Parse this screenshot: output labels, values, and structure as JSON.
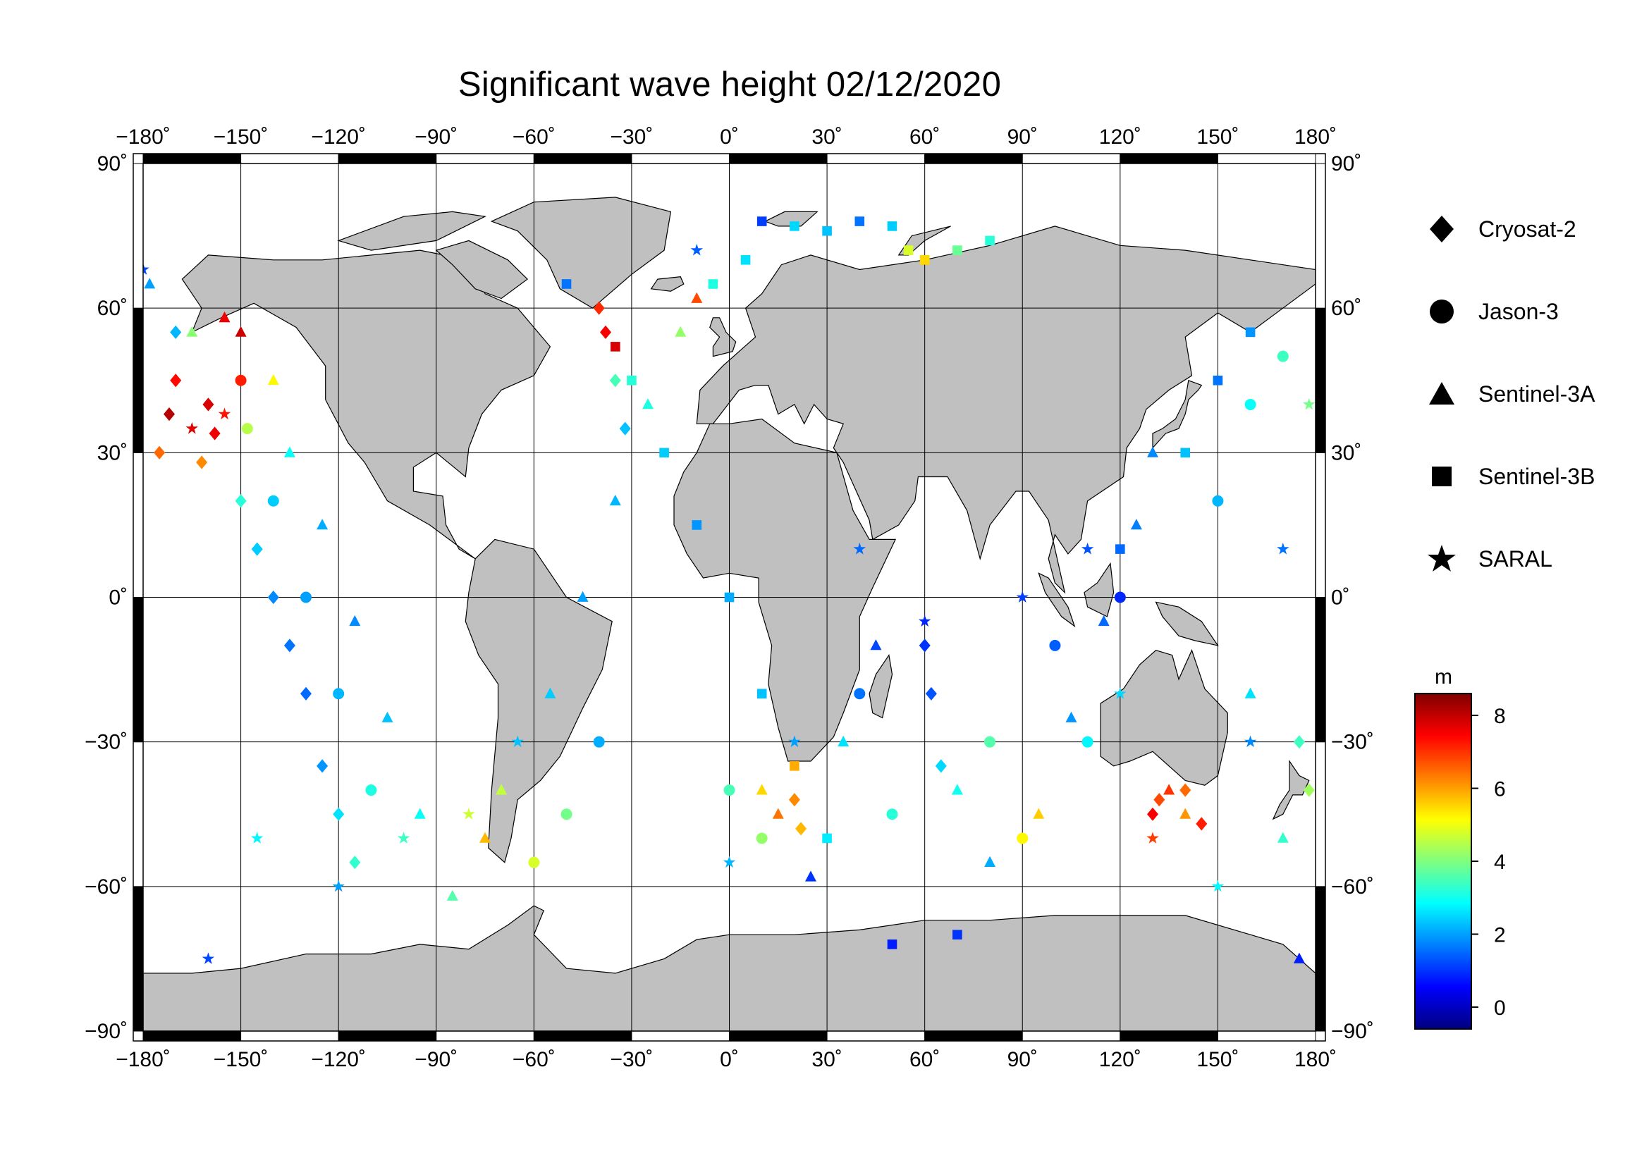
{
  "title": "Significant wave height 02/12/2020",
  "legend": [
    {
      "label": "Cryosat-2",
      "shape": "diamond",
      "icon": "diamond-icon"
    },
    {
      "label": "Jason-3",
      "shape": "circle",
      "icon": "circle-icon"
    },
    {
      "label": "Sentinel-3A",
      "shape": "triangle",
      "icon": "triangle-icon"
    },
    {
      "label": "Sentinel-3B",
      "shape": "square",
      "icon": "square-icon"
    },
    {
      "label": "SARAL",
      "shape": "star",
      "icon": "star-icon"
    }
  ],
  "colorbar": {
    "unit": "m",
    "range": [
      -0.6,
      8.6
    ],
    "ticks": [
      0,
      2,
      4,
      6,
      8
    ],
    "colormap": [
      "#00007f",
      "#0000ff",
      "#007fff",
      "#00ffff",
      "#7fff7f",
      "#ffff00",
      "#ff7f00",
      "#ff0000",
      "#7f0000"
    ]
  },
  "colors": {
    "land": "#c0c0c0",
    "coastline": "#000000",
    "ocean": "#ffffff",
    "grid": "#000000"
  },
  "chart_data": {
    "type": "scatter",
    "projection": "equirectangular",
    "xlim": [
      -180,
      180
    ],
    "ylim": [
      -90,
      90
    ],
    "grid": true,
    "x_ticks": [
      -180,
      -150,
      -120,
      -90,
      -60,
      -30,
      0,
      30,
      60,
      90,
      120,
      150,
      180
    ],
    "y_ticks": [
      -90,
      -60,
      -30,
      0,
      30,
      60,
      90
    ],
    "x_tick_labels": [
      "−180˚",
      "−150˚",
      "−120˚",
      "−90˚",
      "−60˚",
      "−30˚",
      "0˚",
      "30˚",
      "60˚",
      "90˚",
      "120˚",
      "150˚",
      "180˚"
    ],
    "y_tick_labels": [
      "−90˚",
      "−60˚",
      "−30˚",
      "0˚",
      "30˚",
      "60˚",
      "90˚"
    ],
    "value_unit": "m",
    "series": [
      {
        "name": "Cryosat-2",
        "marker": "diamond",
        "points": [
          [
            -170,
            55,
            2.2
          ],
          [
            -170,
            45,
            7.4
          ],
          [
            -172,
            38,
            8.1
          ],
          [
            -175,
            30,
            6.5
          ],
          [
            -160,
            40,
            7.8
          ],
          [
            -158,
            34,
            7.6
          ],
          [
            -162,
            28,
            6.2
          ],
          [
            -150,
            20,
            3.2
          ],
          [
            -145,
            10,
            2.4
          ],
          [
            -140,
            0,
            1.8
          ],
          [
            -135,
            -10,
            1.6
          ],
          [
            -130,
            -20,
            1.5
          ],
          [
            -125,
            -35,
            1.9
          ],
          [
            -120,
            -45,
            2.6
          ],
          [
            -115,
            -55,
            3.3
          ],
          [
            -40,
            60,
            7.1
          ],
          [
            -38,
            55,
            7.5
          ],
          [
            -35,
            45,
            3.5
          ],
          [
            -32,
            35,
            2.3
          ],
          [
            20,
            -42,
            6.2
          ],
          [
            22,
            -48,
            5.8
          ],
          [
            60,
            -10,
            1.0
          ],
          [
            62,
            -20,
            1.3
          ],
          [
            65,
            -35,
            2.5
          ],
          [
            130,
            -45,
            7.5
          ],
          [
            132,
            -42,
            6.8
          ],
          [
            140,
            -40,
            6.5
          ],
          [
            145,
            -47,
            7.2
          ],
          [
            175,
            -30,
            3.4
          ],
          [
            178,
            -40,
            4.3
          ]
        ]
      },
      {
        "name": "Jason-3",
        "marker": "circle",
        "points": [
          [
            -150,
            45,
            7.2
          ],
          [
            -148,
            35,
            4.5
          ],
          [
            -140,
            20,
            2.4
          ],
          [
            -130,
            0,
            2.0
          ],
          [
            -120,
            -20,
            2.2
          ],
          [
            -110,
            -40,
            3.1
          ],
          [
            -60,
            -55,
            4.8
          ],
          [
            -50,
            -45,
            3.9
          ],
          [
            -40,
            -30,
            2.1
          ],
          [
            0,
            -40,
            3.5
          ],
          [
            10,
            -50,
            4.2
          ],
          [
            40,
            -20,
            1.6
          ],
          [
            50,
            -45,
            3.2
          ],
          [
            80,
            -30,
            3.6
          ],
          [
            90,
            -50,
            5.2
          ],
          [
            100,
            -10,
            1.4
          ],
          [
            110,
            -30,
            2.8
          ],
          [
            120,
            0,
            0.9
          ],
          [
            150,
            20,
            2.2
          ],
          [
            160,
            40,
            2.9
          ],
          [
            170,
            50,
            3.4
          ]
        ]
      },
      {
        "name": "Sentinel-3A",
        "marker": "triangle",
        "points": [
          [
            -178,
            65,
            2.0
          ],
          [
            -165,
            55,
            4.1
          ],
          [
            -155,
            58,
            7.6
          ],
          [
            -150,
            55,
            7.9
          ],
          [
            -140,
            45,
            5.2
          ],
          [
            -135,
            30,
            2.9
          ],
          [
            -125,
            15,
            2.1
          ],
          [
            -115,
            -5,
            1.8
          ],
          [
            -105,
            -25,
            2.3
          ],
          [
            -95,
            -45,
            2.9
          ],
          [
            -85,
            -62,
            3.6
          ],
          [
            -75,
            -50,
            5.8
          ],
          [
            -70,
            -40,
            4.6
          ],
          [
            -55,
            -20,
            2.4
          ],
          [
            -45,
            0,
            2.0
          ],
          [
            -35,
            20,
            2.2
          ],
          [
            -25,
            40,
            3.1
          ],
          [
            -15,
            55,
            4.2
          ],
          [
            -10,
            62,
            6.8
          ],
          [
            10,
            -40,
            5.5
          ],
          [
            15,
            -45,
            6.4
          ],
          [
            25,
            -58,
            1.0
          ],
          [
            35,
            -30,
            2.6
          ],
          [
            45,
            -10,
            1.2
          ],
          [
            70,
            -40,
            3.0
          ],
          [
            80,
            -55,
            2.1
          ],
          [
            95,
            -45,
            5.6
          ],
          [
            105,
            -25,
            1.9
          ],
          [
            115,
            -5,
            1.5
          ],
          [
            125,
            15,
            1.7
          ],
          [
            130,
            30,
            1.8
          ],
          [
            135,
            -40,
            7.0
          ],
          [
            140,
            -45,
            6.1
          ],
          [
            160,
            -20,
            2.6
          ],
          [
            170,
            -50,
            3.3
          ],
          [
            175,
            -75,
            0.8
          ]
        ]
      },
      {
        "name": "Sentinel-3B",
        "marker": "square",
        "points": [
          [
            10,
            78,
            1.1
          ],
          [
            20,
            77,
            2.5
          ],
          [
            30,
            76,
            2.3
          ],
          [
            40,
            78,
            1.6
          ],
          [
            50,
            77,
            2.4
          ],
          [
            55,
            72,
            4.8
          ],
          [
            60,
            70,
            5.5
          ],
          [
            70,
            72,
            3.8
          ],
          [
            80,
            74,
            3.2
          ],
          [
            5,
            70,
            2.6
          ],
          [
            -5,
            65,
            3.1
          ],
          [
            -50,
            65,
            1.6
          ],
          [
            -35,
            52,
            7.8
          ],
          [
            -30,
            45,
            3.2
          ],
          [
            -20,
            30,
            2.4
          ],
          [
            -10,
            15,
            1.9
          ],
          [
            0,
            0,
            2.1
          ],
          [
            10,
            -20,
            2.3
          ],
          [
            20,
            -35,
            5.9
          ],
          [
            30,
            -50,
            2.7
          ],
          [
            50,
            -72,
            0.8
          ],
          [
            70,
            -70,
            1.0
          ],
          [
            120,
            10,
            1.5
          ],
          [
            140,
            30,
            2.3
          ],
          [
            150,
            45,
            1.6
          ],
          [
            160,
            55,
            1.9
          ]
        ]
      },
      {
        "name": "SARAL",
        "marker": "star",
        "points": [
          [
            -180,
            68,
            1.2
          ],
          [
            -165,
            35,
            7.7
          ],
          [
            -155,
            38,
            7.3
          ],
          [
            -160,
            -75,
            1.2
          ],
          [
            -145,
            -50,
            2.8
          ],
          [
            -120,
            -60,
            2.0
          ],
          [
            -100,
            -50,
            3.4
          ],
          [
            -80,
            -45,
            4.7
          ],
          [
            -65,
            -30,
            2.3
          ],
          [
            -10,
            72,
            1.4
          ],
          [
            0,
            -55,
            2.2
          ],
          [
            20,
            -30,
            2.0
          ],
          [
            40,
            10,
            1.5
          ],
          [
            60,
            -5,
            0.9
          ],
          [
            90,
            0,
            1.1
          ],
          [
            110,
            10,
            1.3
          ],
          [
            120,
            -20,
            2.5
          ],
          [
            130,
            -50,
            6.9
          ],
          [
            150,
            -60,
            2.8
          ],
          [
            160,
            -30,
            1.8
          ],
          [
            170,
            10,
            1.6
          ],
          [
            178,
            40,
            3.9
          ]
        ]
      }
    ]
  }
}
